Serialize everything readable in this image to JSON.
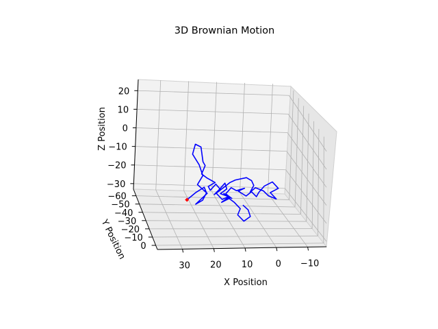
{
  "chart_data": {
    "type": "line",
    "projection": "3d",
    "title": "3D Brownian Motion",
    "xlabel": "X Position",
    "ylabel": "Y Position",
    "zlabel": "Z Position",
    "xlim": [
      -16,
      38
    ],
    "ylim": [
      -68,
      5
    ],
    "zlim": [
      -33,
      26
    ],
    "x_ticks": [
      "30",
      "20",
      "10",
      "0",
      "−10"
    ],
    "y_ticks": [
      "−60",
      "−50",
      "−40",
      "−30",
      "−20",
      "−10",
      "0"
    ],
    "z_ticks": [
      "20",
      "10",
      "0",
      "−10",
      "−20",
      "−30"
    ],
    "grid": true,
    "series": [
      {
        "color": "#0000ff",
        "points": [
          [
            28,
            0,
            -8
          ],
          [
            25,
            -2,
            -5
          ],
          [
            22,
            -4,
            -3
          ],
          [
            21,
            -6,
            -7
          ],
          [
            22,
            -8,
            -12
          ],
          [
            24,
            -10,
            -15
          ],
          [
            20,
            -12,
            -10
          ],
          [
            23,
            -14,
            -6
          ],
          [
            21,
            -16,
            -2
          ],
          [
            22,
            -18,
            3
          ],
          [
            24,
            -20,
            8
          ],
          [
            23,
            -21,
            13
          ],
          [
            21,
            -22,
            11
          ],
          [
            20,
            -24,
            2
          ],
          [
            19,
            -26,
            -1
          ],
          [
            20,
            -27,
            -6
          ],
          [
            18,
            -29,
            -9
          ],
          [
            15,
            -30,
            -12
          ],
          [
            17,
            -32,
            -15
          ],
          [
            16,
            -34,
            -18
          ],
          [
            14,
            -35,
            -15
          ],
          [
            12,
            -37,
            -19
          ],
          [
            14,
            -38,
            -22
          ],
          [
            12,
            -40,
            -20
          ],
          [
            10,
            -41,
            -17
          ],
          [
            9,
            -43,
            -21
          ],
          [
            11,
            -44,
            -24
          ],
          [
            8,
            -45,
            -26
          ],
          [
            10,
            -46,
            -28
          ],
          [
            12,
            -47,
            -25
          ],
          [
            9,
            -48,
            -22
          ],
          [
            7,
            -49,
            -20
          ],
          [
            5,
            -50,
            -19
          ],
          [
            1,
            -51,
            -18
          ],
          [
            -1,
            -52,
            -20
          ],
          [
            -2,
            -53,
            -23
          ],
          [
            -1,
            -54,
            -27
          ],
          [
            -3,
            -55,
            -25
          ],
          [
            -6,
            -56,
            -27
          ],
          [
            -8,
            -57,
            -30
          ],
          [
            -11,
            -58,
            -32
          ],
          [
            -9,
            -59,
            -29
          ],
          [
            -12,
            -60,
            -27
          ],
          [
            -10,
            -61,
            -24
          ],
          [
            -7,
            -60,
            -26
          ],
          [
            -5,
            -59,
            -29
          ],
          [
            -4,
            -58,
            -31
          ],
          [
            -2,
            -57,
            -28
          ],
          [
            0,
            -56,
            -30
          ],
          [
            3,
            -55,
            -27
          ],
          [
            1,
            -54,
            -25
          ],
          [
            4,
            -53,
            -26
          ],
          [
            6,
            -52,
            -24
          ],
          [
            8,
            -51,
            -27
          ],
          [
            6,
            -50,
            -29
          ],
          [
            9,
            -49,
            -26
          ],
          [
            7,
            -48,
            -28
          ],
          [
            10,
            -47,
            -30
          ],
          [
            8,
            -46,
            -27
          ],
          [
            6,
            -45,
            -29
          ],
          [
            4,
            -44,
            -32
          ],
          [
            5,
            -43,
            -35
          ],
          [
            3,
            -42,
            -38
          ],
          [
            1,
            -41,
            -35
          ],
          [
            2,
            -40,
            -31
          ],
          [
            4,
            -39,
            -28
          ]
        ]
      }
    ],
    "start_marker": {
      "point": [
        28,
        0,
        -8
      ],
      "color": "#ff0000"
    }
  }
}
